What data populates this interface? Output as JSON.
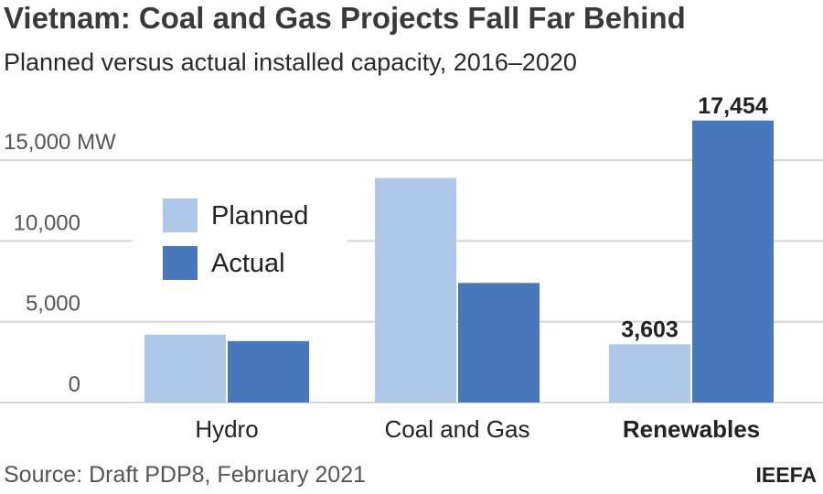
{
  "chart_data": {
    "type": "bar",
    "title": "Vietnam: Coal and Gas Projects Fall Far Behind",
    "subtitle": "Planned versus actual installed capacity, 2016–2020",
    "categories": [
      "Hydro",
      "Coal and Gas",
      "Renewables"
    ],
    "series": [
      {
        "name": "Planned",
        "color": "#adc8e8",
        "values": [
          4200,
          13900,
          3603
        ]
      },
      {
        "name": "Actual",
        "color": "#4878bc",
        "values": [
          3800,
          7400,
          17454
        ]
      }
    ],
    "data_labels": [
      {
        "series": 0,
        "category": 2,
        "text": "3,603"
      },
      {
        "series": 1,
        "category": 2,
        "text": "17,454"
      }
    ],
    "ylim": [
      0,
      17454
    ],
    "yticks": [
      0,
      5000,
      10000,
      15000
    ],
    "ytick_labels": [
      "0",
      "5,000",
      "10,000",
      "15,000 MW"
    ],
    "grid": true,
    "legend_position": "top-left",
    "xlabel": "",
    "ylabel": "",
    "source": "Source: Draft PDP8, February 2021",
    "brand": "IEEFA"
  }
}
